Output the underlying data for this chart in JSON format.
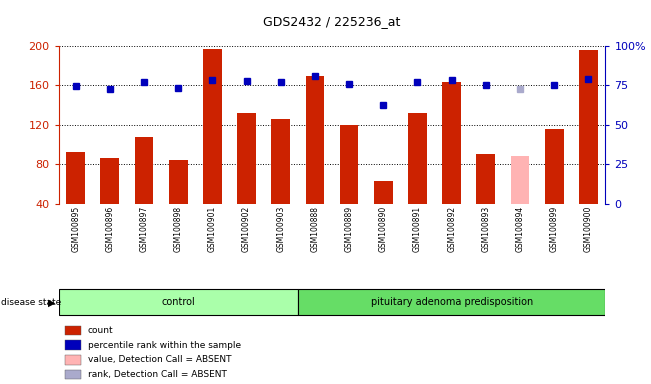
{
  "title": "GDS2432 / 225236_at",
  "samples": [
    "GSM100895",
    "GSM100896",
    "GSM100897",
    "GSM100898",
    "GSM100901",
    "GSM100902",
    "GSM100903",
    "GSM100888",
    "GSM100889",
    "GSM100890",
    "GSM100891",
    "GSM100892",
    "GSM100893",
    "GSM100894",
    "GSM100899",
    "GSM100900"
  ],
  "bar_values": [
    92,
    86,
    108,
    84,
    197,
    132,
    126,
    170,
    120,
    63,
    132,
    163,
    90,
    88,
    116,
    196
  ],
  "bar_colors": [
    "#cc2200",
    "#cc2200",
    "#cc2200",
    "#cc2200",
    "#cc2200",
    "#cc2200",
    "#cc2200",
    "#cc2200",
    "#cc2200",
    "#cc2200",
    "#cc2200",
    "#cc2200",
    "#cc2200",
    "#ffb3b3",
    "#cc2200",
    "#cc2200"
  ],
  "dot_values": [
    159,
    156,
    163,
    157,
    166,
    165,
    164,
    170,
    161,
    140,
    164,
    166,
    160,
    156,
    160,
    167
  ],
  "dot_colors": [
    "#0000bb",
    "#0000bb",
    "#0000bb",
    "#0000bb",
    "#0000bb",
    "#0000bb",
    "#0000bb",
    "#0000bb",
    "#0000bb",
    "#0000bb",
    "#0000bb",
    "#0000bb",
    "#0000bb",
    "#aaaacc",
    "#0000bb",
    "#0000bb"
  ],
  "group_labels": [
    "control",
    "pituitary adenoma predisposition"
  ],
  "ctrl_count": 7,
  "ylim_left": [
    40,
    200
  ],
  "ylim_right": [
    0,
    100
  ],
  "yticks_left": [
    40,
    80,
    120,
    160,
    200
  ],
  "yticks_right": [
    0,
    25,
    50,
    75,
    100
  ],
  "ytick_labels_right": [
    "0",
    "25",
    "50",
    "75",
    "100%"
  ],
  "legend_items": [
    {
      "label": "count",
      "color": "#cc2200"
    },
    {
      "label": "percentile rank within the sample",
      "color": "#0000bb"
    },
    {
      "label": "value, Detection Call = ABSENT",
      "color": "#ffb3b3"
    },
    {
      "label": "rank, Detection Call = ABSENT",
      "color": "#aaaacc"
    }
  ]
}
